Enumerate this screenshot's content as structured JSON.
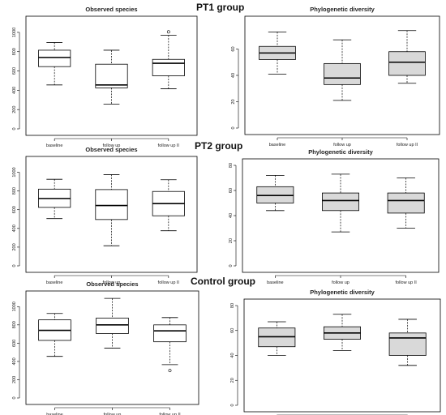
{
  "groups": [
    {
      "label": "PT1 group"
    },
    {
      "label": "PT2 group"
    },
    {
      "label": "Control group"
    }
  ],
  "colors": {
    "box_fill_white": "#ffffff",
    "box_fill_gray": "#d9d9d9",
    "stroke": "#000000"
  },
  "chart_data": [
    {
      "type": "boxplot",
      "group": "PT1 group",
      "title": "Observed species",
      "categories": [
        "baseline",
        "follow up",
        "follow up II"
      ],
      "ylim": [
        0,
        1100
      ],
      "yticks": [
        0,
        200,
        400,
        600,
        800,
        1000
      ],
      "box_fill": "white",
      "grid": false,
      "boxes": [
        {
          "min": 455,
          "q1": 645,
          "median": 740,
          "q3": 815,
          "max": 895,
          "outliers": []
        },
        {
          "min": 255,
          "q1": 425,
          "median": 455,
          "q3": 670,
          "max": 815,
          "outliers": []
        },
        {
          "min": 415,
          "q1": 550,
          "median": 680,
          "q3": 720,
          "max": 970,
          "outliers": [
            1005
          ]
        }
      ]
    },
    {
      "type": "boxplot",
      "group": "PT1 group",
      "title": "Phylogenetic diversity",
      "categories": [
        "baseline",
        "follow up",
        "follow up II"
      ],
      "ylim": [
        0,
        80
      ],
      "yticks": [
        0,
        20,
        40,
        60
      ],
      "box_fill": "gray",
      "grid": false,
      "boxes": [
        {
          "min": 41,
          "q1": 52,
          "median": 57,
          "q3": 62,
          "max": 73,
          "outliers": []
        },
        {
          "min": 21,
          "q1": 33,
          "median": 38,
          "q3": 49,
          "max": 67,
          "outliers": []
        },
        {
          "min": 34,
          "q1": 40,
          "median": 50,
          "q3": 58,
          "max": 74,
          "outliers": []
        }
      ]
    },
    {
      "type": "boxplot",
      "group": "PT2 group",
      "title": "Observed species",
      "categories": [
        "baseline",
        "follow up",
        "follow up II"
      ],
      "ylim": [
        0,
        1100
      ],
      "yticks": [
        0,
        200,
        400,
        600,
        800,
        1000
      ],
      "box_fill": "white",
      "grid": false,
      "boxes": [
        {
          "min": 505,
          "q1": 625,
          "median": 720,
          "q3": 820,
          "max": 925,
          "outliers": []
        },
        {
          "min": 215,
          "q1": 495,
          "median": 645,
          "q3": 815,
          "max": 975,
          "outliers": []
        },
        {
          "min": 375,
          "q1": 535,
          "median": 665,
          "q3": 795,
          "max": 920,
          "outliers": []
        }
      ]
    },
    {
      "type": "boxplot",
      "group": "PT2 group",
      "title": "Phylogenetic diversity",
      "categories": [
        "baseline",
        "follow up",
        "follow up II"
      ],
      "ylim": [
        0,
        80
      ],
      "yticks": [
        0,
        20,
        40,
        60,
        80
      ],
      "box_fill": "gray",
      "grid": false,
      "boxes": [
        {
          "min": 44,
          "q1": 50,
          "median": 56,
          "q3": 63,
          "max": 72,
          "outliers": []
        },
        {
          "min": 27,
          "q1": 44,
          "median": 52,
          "q3": 58,
          "max": 73,
          "outliers": []
        },
        {
          "min": 30,
          "q1": 42,
          "median": 52,
          "q3": 58,
          "max": 70,
          "outliers": []
        }
      ]
    },
    {
      "type": "boxplot",
      "group": "Control group",
      "title": "Observed species",
      "categories": [
        "baseline",
        "follow up",
        "follow up II"
      ],
      "ylim": [
        0,
        1100
      ],
      "yticks": [
        0,
        200,
        400,
        600,
        800,
        1000
      ],
      "box_fill": "white",
      "grid": false,
      "boxes": [
        {
          "min": 455,
          "q1": 630,
          "median": 740,
          "q3": 855,
          "max": 925,
          "outliers": []
        },
        {
          "min": 545,
          "q1": 705,
          "median": 800,
          "q3": 875,
          "max": 1090,
          "outliers": []
        },
        {
          "min": 365,
          "q1": 615,
          "median": 735,
          "q3": 800,
          "max": 880,
          "outliers": [
            300
          ]
        }
      ]
    },
    {
      "type": "boxplot",
      "group": "Control group",
      "title": "Phylogenetic diversity",
      "categories": [
        "baseline",
        "follow up",
        "follow up II"
      ],
      "ylim": [
        0,
        80
      ],
      "yticks": [
        0,
        20,
        40,
        60,
        80
      ],
      "box_fill": "gray",
      "grid": false,
      "boxes": [
        {
          "min": 40,
          "q1": 47,
          "median": 55,
          "q3": 62,
          "max": 67,
          "outliers": []
        },
        {
          "min": 44,
          "q1": 53,
          "median": 58,
          "q3": 63,
          "max": 73,
          "outliers": []
        },
        {
          "min": 32,
          "q1": 40,
          "median": 54,
          "q3": 58,
          "max": 69,
          "outliers": []
        }
      ]
    }
  ]
}
